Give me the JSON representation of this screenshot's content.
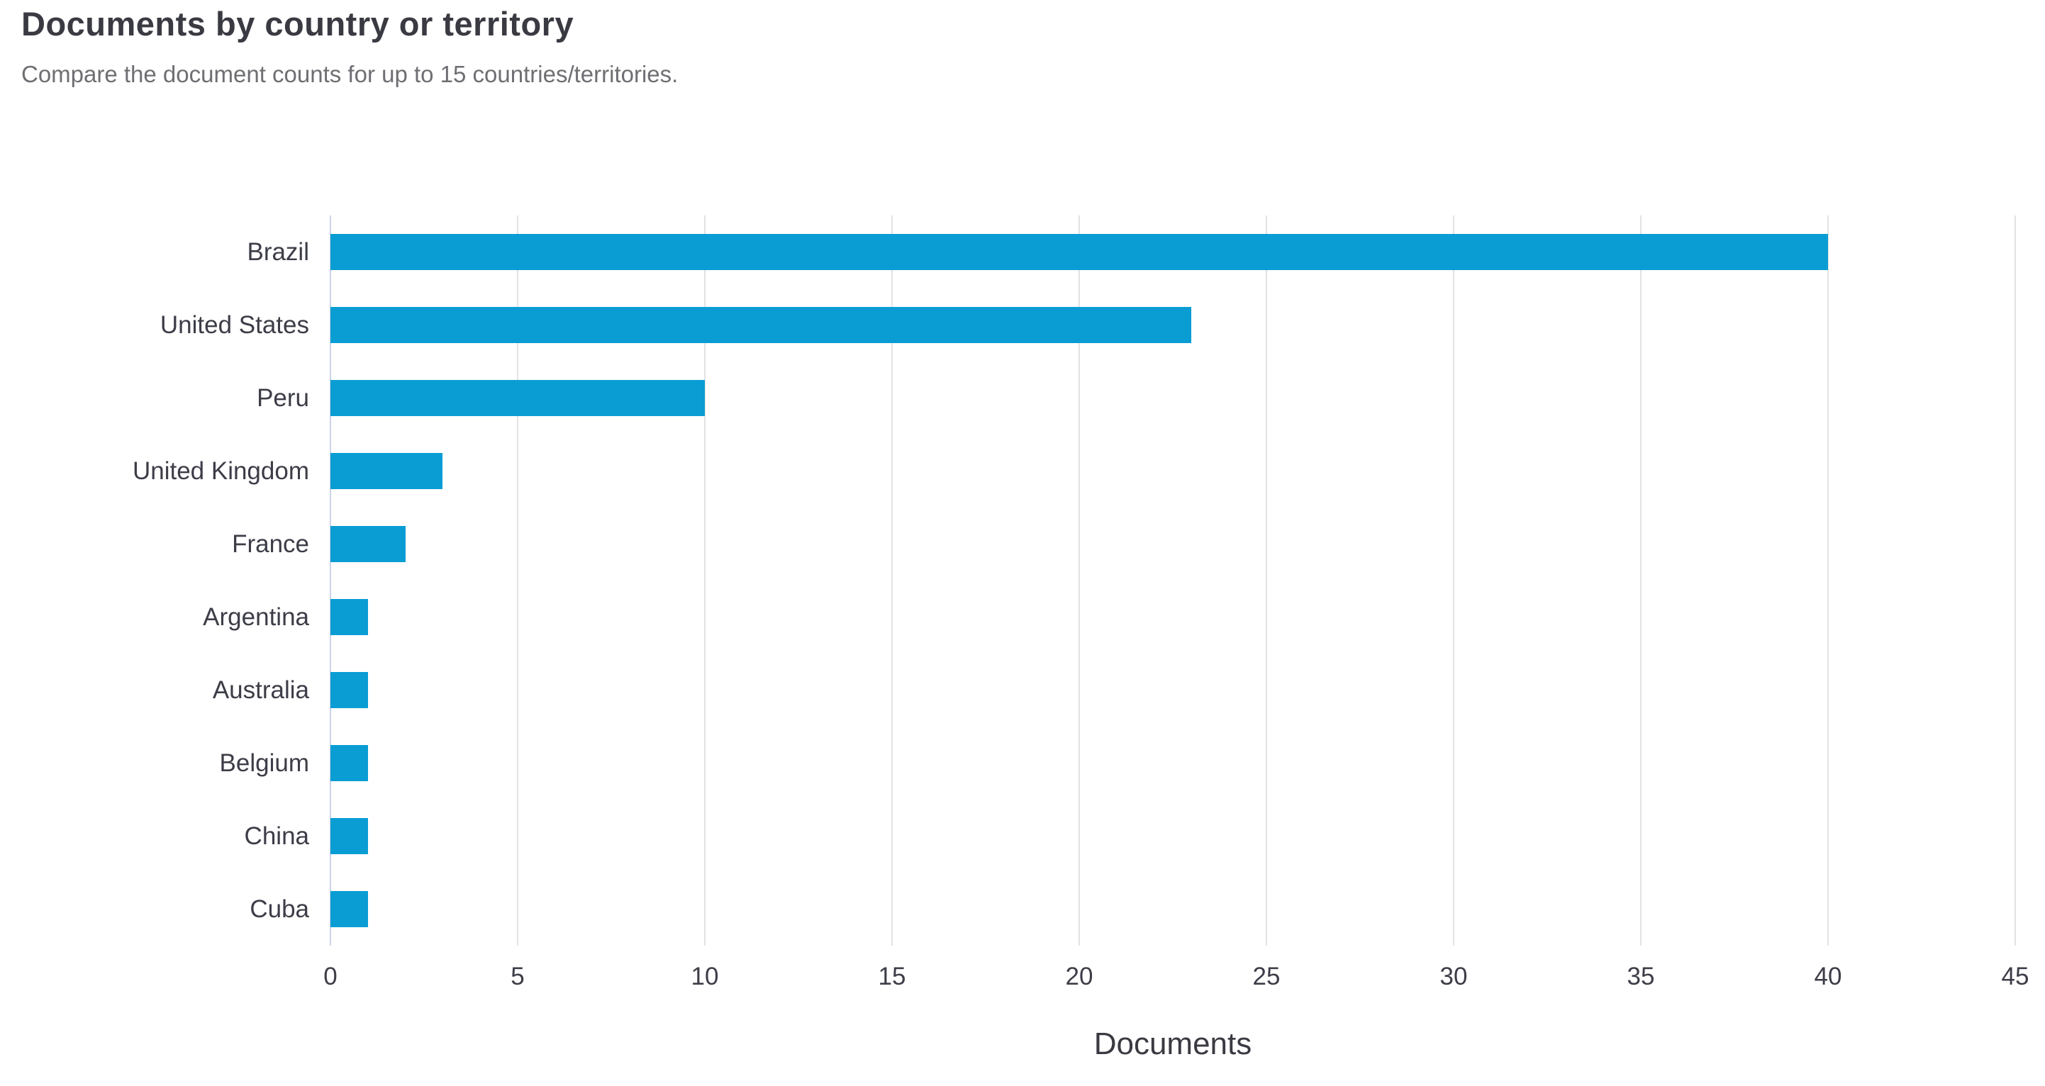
{
  "header": {
    "title": "Documents by country or territory",
    "subtitle": "Compare the document counts for up to 15 countries/territories."
  },
  "chart_data": {
    "type": "bar",
    "orientation": "horizontal",
    "title": "Documents by country or territory",
    "subtitle": "Compare the document counts for up to 15 countries/territories.",
    "categories": [
      "Brazil",
      "United States",
      "Peru",
      "United Kingdom",
      "France",
      "Argentina",
      "Australia",
      "Belgium",
      "China",
      "Cuba"
    ],
    "values": [
      40,
      23,
      10,
      3,
      2,
      1,
      1,
      1,
      1,
      1
    ],
    "xlabel": "Documents",
    "ylabel": "",
    "xlim": [
      0,
      45
    ],
    "xticks": [
      0,
      5,
      10,
      15,
      20,
      25,
      30,
      35,
      40,
      45
    ],
    "grid": "vertical",
    "legend": "none",
    "bar_color": "#0a9dd4",
    "gridline_color": "#e3e3e3",
    "zero_axis_color": "#ccd3e8",
    "label_color": "#3c3d47",
    "title_color": "#3a3a42",
    "subtitle_color": "#6e6e73",
    "background_color": "#ffffff"
  }
}
